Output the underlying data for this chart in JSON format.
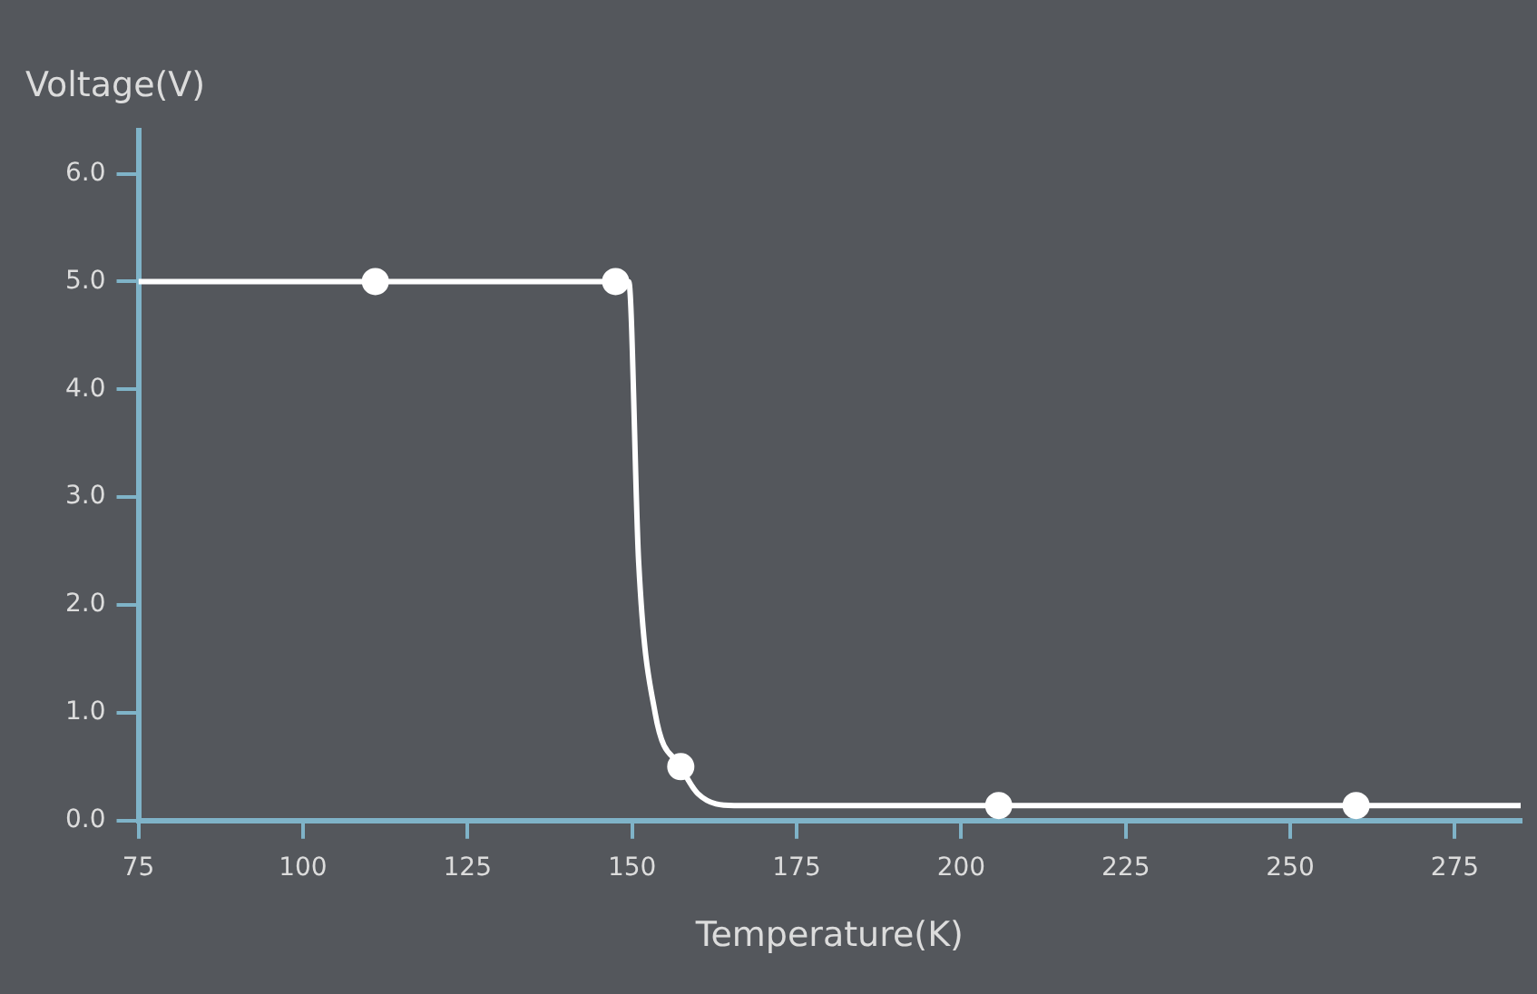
{
  "chart_data": {
    "type": "line",
    "xlabel": "Temperature(K)",
    "ylabel": "Voltage(V)",
    "xlim": [
      75,
      285
    ],
    "xticks": [
      75,
      100,
      125,
      150,
      175,
      200,
      225,
      250,
      275
    ],
    "ylim": [
      0,
      6.4
    ],
    "yticks": [
      {
        "value": 0,
        "label": "0.0"
      },
      {
        "value": 1,
        "label": "1.0"
      },
      {
        "value": 2,
        "label": "2.0"
      },
      {
        "value": 3,
        "label": "3.0"
      },
      {
        "value": 4,
        "label": "4.0"
      },
      {
        "value": 5,
        "label": "5.0"
      },
      {
        "value": 6,
        "label": "6.0"
      }
    ],
    "grid": false,
    "legend": false,
    "series": [
      {
        "color": "#ffffff",
        "marker": "none",
        "x": [
          75,
          111,
          147.5,
          149.5,
          151,
          153.5,
          157.4,
          160,
          165.5,
          205.7,
          260,
          285
        ],
        "values": [
          5,
          5,
          5,
          5,
          2.4,
          1.0,
          0.5,
          0.25,
          0.14,
          0.14,
          0.14,
          0.14
        ]
      },
      {
        "type": "scatter",
        "color": "#ffffff",
        "marker": "circle",
        "x": [
          111,
          147.5,
          157.4,
          205.7,
          260
        ],
        "values": [
          5,
          5,
          0.5,
          0.14,
          0.14
        ]
      }
    ]
  }
}
